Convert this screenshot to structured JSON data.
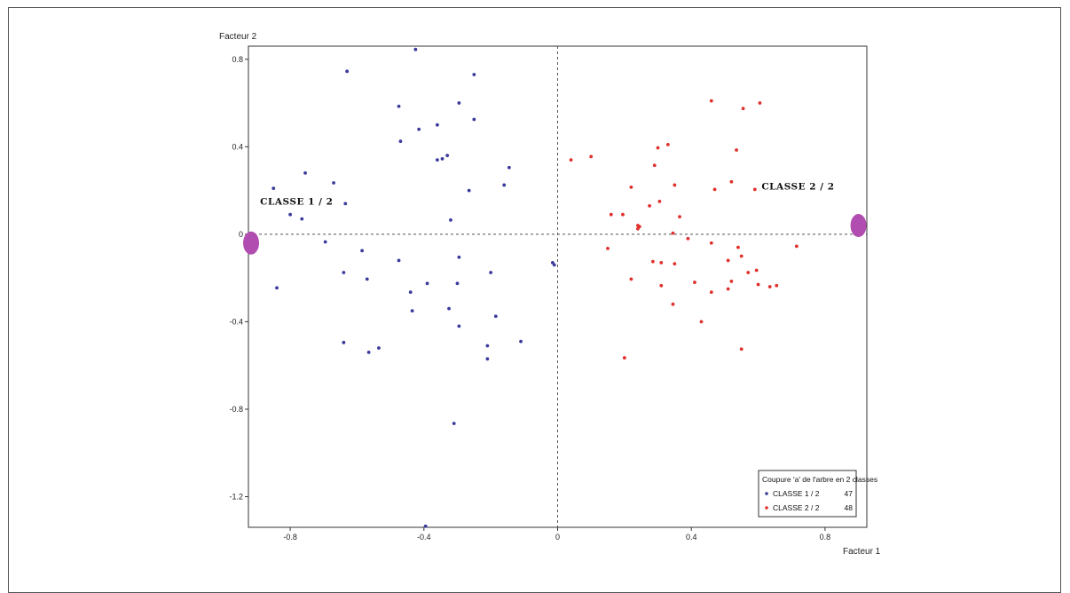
{
  "chart_data": {
    "type": "scatter",
    "xlabel": "Facteur 1",
    "ylabel": "Facteur 2",
    "xlim": [
      -0.925,
      0.925
    ],
    "ylim": [
      -1.34,
      0.86
    ],
    "x_ticks": [
      -0.8,
      -0.4,
      0,
      0.4,
      0.8
    ],
    "x_tick_labels": [
      "-0.8",
      "-0.4",
      "0",
      "0.4",
      "0.8"
    ],
    "y_ticks": [
      0.8,
      0.4,
      0,
      -0.4,
      -0.8,
      -1.2
    ],
    "y_tick_labels": [
      "0.8",
      "0.4",
      "0",
      "-0.4",
      "-0.8",
      "-1.2"
    ],
    "grid": false,
    "reference_lines": "dashed lines at x = 0 and y = 0",
    "legend": {
      "placement": "bottom-right",
      "title": "Coupure 'a' de l'arbre en 2 classes",
      "entries": [
        {
          "label": "CLASSE 1 / 2",
          "count": "47",
          "color": "#3a3a9c"
        },
        {
          "label": "CLASSE 2 / 2",
          "count": "48",
          "color": "#e0302c"
        }
      ]
    },
    "centroids": [
      {
        "label": "CLASSE 1 / 2",
        "x": -0.917,
        "y": -0.04,
        "label_x": -0.89,
        "label_y": 0.135,
        "color": "#b14db0"
      },
      {
        "label": "CLASSE 2 / 2",
        "x": 0.9,
        "y": 0.04,
        "label_x": 0.61,
        "label_y": 0.205,
        "color": "#b14db0"
      }
    ],
    "series": [
      {
        "name": "CLASSE 1 / 2",
        "color": "#3a3a9c",
        "points": [
          [
            -0.425,
            0.845
          ],
          [
            -0.63,
            0.745
          ],
          [
            -0.25,
            0.73
          ],
          [
            -0.475,
            0.585
          ],
          [
            -0.295,
            0.6
          ],
          [
            -0.415,
            0.48
          ],
          [
            -0.36,
            0.5
          ],
          [
            -0.25,
            0.525
          ],
          [
            -0.47,
            0.425
          ],
          [
            -0.33,
            0.36
          ],
          [
            -0.345,
            0.345
          ],
          [
            -0.36,
            0.34
          ],
          [
            -0.145,
            0.305
          ],
          [
            -0.755,
            0.28
          ],
          [
            -0.16,
            0.225
          ],
          [
            -0.67,
            0.235
          ],
          [
            -0.265,
            0.2
          ],
          [
            -0.85,
            0.21
          ],
          [
            -0.635,
            0.14
          ],
          [
            -0.8,
            0.09
          ],
          [
            -0.765,
            0.07
          ],
          [
            -0.32,
            0.065
          ],
          [
            -0.695,
            -0.035
          ],
          [
            -0.585,
            -0.075
          ],
          [
            -0.295,
            -0.105
          ],
          [
            -0.475,
            -0.12
          ],
          [
            -0.64,
            -0.175
          ],
          [
            -0.2,
            -0.175
          ],
          [
            -0.57,
            -0.205
          ],
          [
            -0.3,
            -0.225
          ],
          [
            -0.39,
            -0.225
          ],
          [
            -0.44,
            -0.265
          ],
          [
            -0.84,
            -0.245
          ],
          [
            -0.325,
            -0.34
          ],
          [
            -0.435,
            -0.35
          ],
          [
            -0.185,
            -0.375
          ],
          [
            -0.295,
            -0.42
          ],
          [
            -0.11,
            -0.49
          ],
          [
            -0.64,
            -0.495
          ],
          [
            -0.21,
            -0.51
          ],
          [
            -0.535,
            -0.52
          ],
          [
            -0.565,
            -0.54
          ],
          [
            -0.21,
            -0.57
          ],
          [
            -0.31,
            -0.865
          ],
          [
            -0.395,
            -1.335
          ],
          [
            -0.015,
            -0.13
          ],
          [
            -0.01,
            -0.14
          ]
        ]
      },
      {
        "name": "CLASSE 2 / 2",
        "color": "#e0302c",
        "points": [
          [
            0.46,
            0.61
          ],
          [
            0.605,
            0.6
          ],
          [
            0.555,
            0.575
          ],
          [
            0.535,
            0.385
          ],
          [
            0.33,
            0.41
          ],
          [
            0.3,
            0.395
          ],
          [
            0.04,
            0.34
          ],
          [
            0.1,
            0.355
          ],
          [
            0.29,
            0.315
          ],
          [
            0.52,
            0.24
          ],
          [
            0.35,
            0.225
          ],
          [
            0.22,
            0.215
          ],
          [
            0.47,
            0.205
          ],
          [
            0.59,
            0.205
          ],
          [
            0.305,
            0.15
          ],
          [
            0.275,
            0.13
          ],
          [
            0.16,
            0.09
          ],
          [
            0.195,
            0.09
          ],
          [
            0.365,
            0.08
          ],
          [
            0.245,
            0.035
          ],
          [
            0.24,
            0.025
          ],
          [
            0.345,
            0.005
          ],
          [
            0.39,
            -0.02
          ],
          [
            0.46,
            -0.04
          ],
          [
            0.715,
            -0.055
          ],
          [
            0.15,
            -0.065
          ],
          [
            0.54,
            -0.06
          ],
          [
            0.55,
            -0.1
          ],
          [
            0.285,
            -0.125
          ],
          [
            0.51,
            -0.12
          ],
          [
            0.31,
            -0.13
          ],
          [
            0.35,
            -0.135
          ],
          [
            0.595,
            -0.165
          ],
          [
            0.57,
            -0.175
          ],
          [
            0.22,
            -0.205
          ],
          [
            0.41,
            -0.22
          ],
          [
            0.52,
            -0.215
          ],
          [
            0.31,
            -0.235
          ],
          [
            0.6,
            -0.23
          ],
          [
            0.635,
            -0.24
          ],
          [
            0.655,
            -0.235
          ],
          [
            0.51,
            -0.25
          ],
          [
            0.46,
            -0.265
          ],
          [
            0.345,
            -0.32
          ],
          [
            0.43,
            -0.4
          ],
          [
            0.55,
            -0.525
          ],
          [
            0.2,
            -0.565
          ],
          [
            0.24,
            0.04
          ]
        ]
      }
    ]
  }
}
